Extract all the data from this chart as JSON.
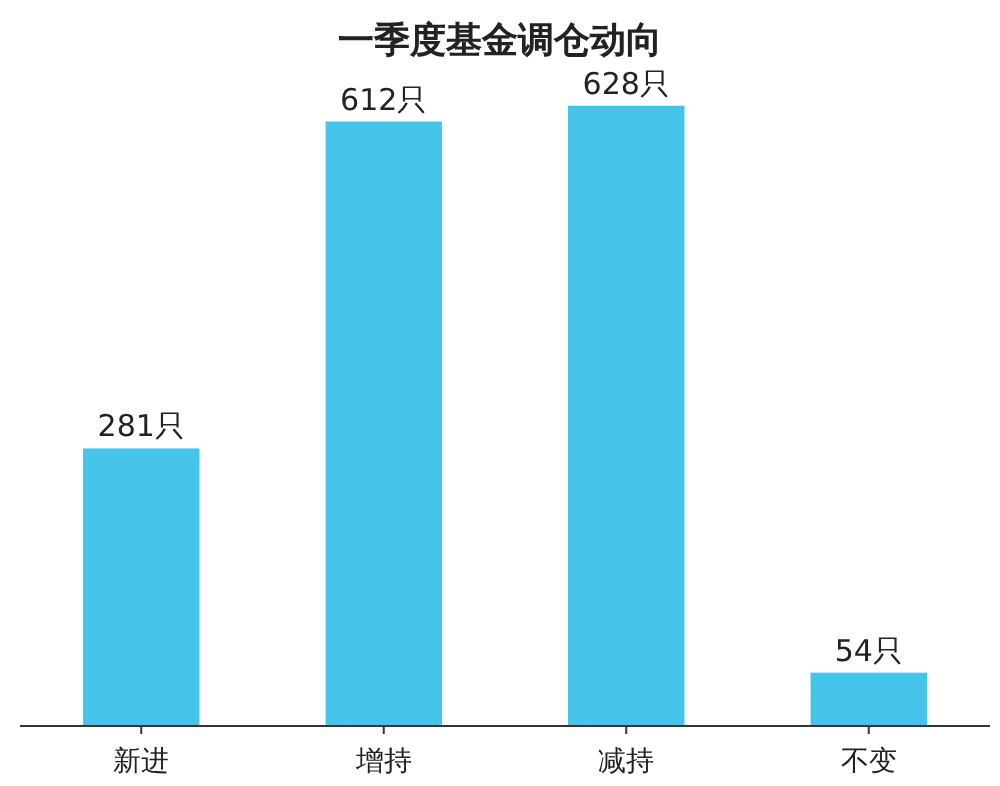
{
  "chart_data": {
    "type": "bar",
    "title": "一季度基金调仓动向",
    "categories": [
      "新进",
      "增持",
      "减持",
      "不变"
    ],
    "values": [
      281,
      612,
      628,
      54
    ],
    "value_labels": [
      "281只",
      "612只",
      "628只",
      "54只"
    ],
    "color": "#45c3e8"
  }
}
